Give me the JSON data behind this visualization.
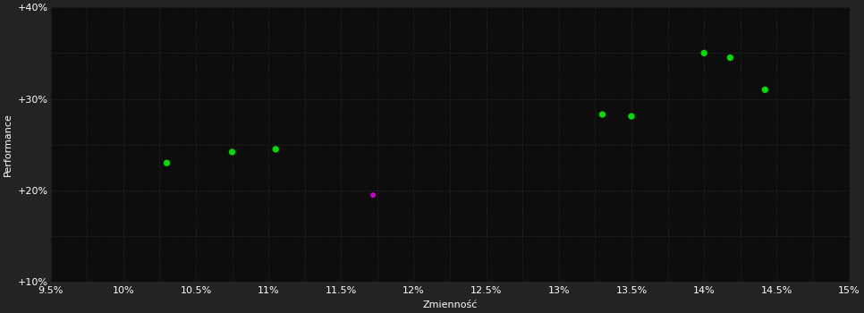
{
  "background_color": "#232323",
  "plot_bg_color": "#0d0d0d",
  "grid_color": "#3a3a3a",
  "text_color": "#ffffff",
  "green_points": [
    [
      10.3,
      23.0
    ],
    [
      10.75,
      24.2
    ],
    [
      11.05,
      24.5
    ],
    [
      13.3,
      28.3
    ],
    [
      13.5,
      28.1
    ],
    [
      14.0,
      35.0
    ],
    [
      14.18,
      34.5
    ],
    [
      14.42,
      31.0
    ]
  ],
  "magenta_points": [
    [
      11.72,
      19.5
    ]
  ],
  "green_color": "#00dd00",
  "magenta_color": "#cc00cc",
  "xlabel": "Zmienność",
  "ylabel": "Performance",
  "xlim": [
    9.5,
    15.0
  ],
  "ylim": [
    10.0,
    40.0
  ],
  "xticks": [
    9.5,
    10.0,
    10.5,
    11.0,
    11.5,
    12.0,
    12.5,
    13.0,
    13.5,
    14.0,
    14.5,
    15.0
  ],
  "yticks": [
    10,
    20,
    30,
    40
  ],
  "ytick_labels": [
    "+10%",
    "+20%",
    "+30%",
    "+40%"
  ],
  "xtick_labels": [
    "9.5%",
    "10%",
    "10.5%",
    "11%",
    "11.5%",
    "12%",
    "12.5%",
    "13%",
    "13.5%",
    "14%",
    "14.5%",
    "15%"
  ],
  "minor_xticks": [
    9.75,
    10.25,
    10.75,
    11.25,
    11.75,
    12.25,
    12.75,
    13.25,
    13.75,
    14.25,
    14.75
  ],
  "minor_yticks": [
    15,
    25,
    35
  ],
  "marker_size_green": 28,
  "marker_size_magenta": 18,
  "font_size_ticks": 8,
  "font_size_labels": 8,
  "font_size_yticks": 8
}
